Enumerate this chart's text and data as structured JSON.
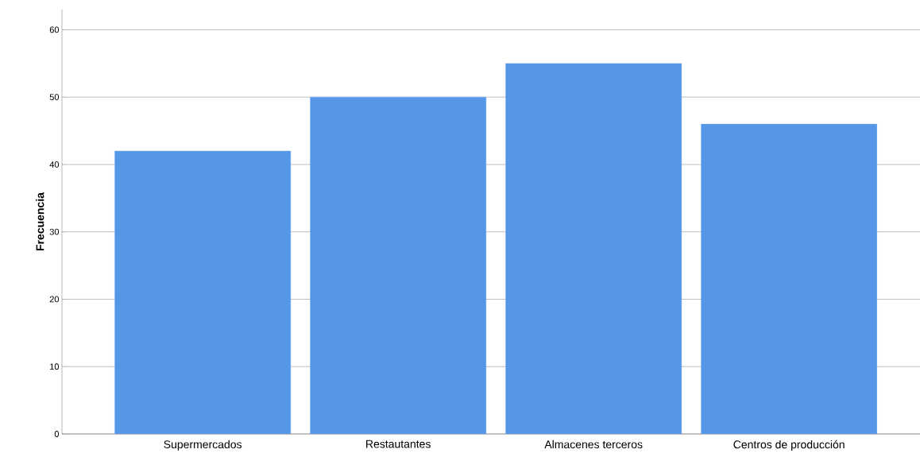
{
  "chart_data": {
    "type": "bar",
    "ylabel": "Frecuencia",
    "categories": [
      "Supermercados",
      "Restautantes",
      "Almacenes terceros",
      "Centros de producción"
    ],
    "values": [
      42,
      50,
      55,
      46
    ],
    "color": "#5596e6",
    "ylim": [
      0,
      63
    ],
    "yticks": [
      0,
      10,
      20,
      30,
      40,
      50,
      60
    ],
    "grid": "y"
  }
}
